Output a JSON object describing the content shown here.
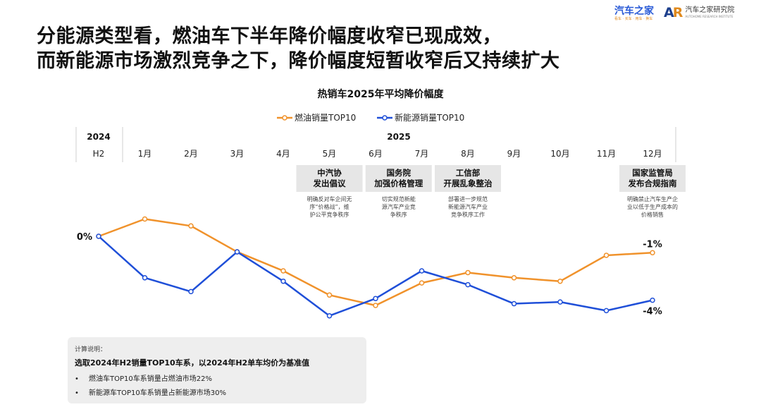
{
  "headline": {
    "line1": "分能源类型看，燃油车下半年降价幅度收窄已现成效，",
    "line2": "而新能源市场激烈竞争之下，降价幅度短暂收窄后又持续扩大"
  },
  "logos": {
    "autohome": {
      "name": "汽车之家",
      "tagline": "看车 · 买车 · 用车 · 换车"
    },
    "institute": {
      "mark": "AR",
      "name": "汽车之家研究院",
      "en": "AUTOHOME RESEARCH INSTITUTE"
    }
  },
  "colors": {
    "fuel": "#f0922b",
    "nev": "#1f4fd8",
    "callout_bg": "#e6e6e6",
    "grid": "#cccccc"
  },
  "chart_data": {
    "type": "line",
    "title": "热销车2025年平均降价幅度",
    "header_groups": [
      {
        "label": "2024",
        "span": [
          "H2"
        ]
      },
      {
        "label": "2025",
        "span": [
          "1月",
          "2月",
          "3月",
          "4月",
          "5月",
          "6月",
          "7月",
          "8月",
          "9月",
          "10月",
          "11月",
          "12月"
        ]
      }
    ],
    "categories": [
      "H2",
      "1月",
      "2月",
      "3月",
      "4月",
      "5月",
      "6月",
      "7月",
      "8月",
      "9月",
      "10月",
      "11月",
      "12月"
    ],
    "series": [
      {
        "name": "燃油销量TOP10",
        "color": "#f0922b",
        "values": [
          0,
          1.0,
          0.6,
          -0.9,
          -2.0,
          -3.4,
          -4.0,
          -2.7,
          -2.1,
          -2.4,
          -2.6,
          -1.1,
          -0.95
        ]
      },
      {
        "name": "新能源销量TOP10",
        "color": "#1f4fd8",
        "values": [
          0,
          -2.4,
          -3.2,
          -0.9,
          -2.6,
          -4.6,
          -3.6,
          -2.0,
          -2.8,
          -3.9,
          -3.8,
          -4.3,
          -3.7
        ]
      }
    ],
    "y_labels": [
      {
        "text": "0%",
        "value": 0
      },
      {
        "text": "-1%",
        "value": -0.95
      },
      {
        "text": "-4%",
        "value": -3.7
      }
    ],
    "legend_position": "top-center",
    "annotations": [
      {
        "month_index": 5,
        "title": [
          "中汽协",
          "发出倡议"
        ],
        "desc": [
          "明确反对车企间无",
          "序“价格战”，维",
          "护公平竞争秩序"
        ]
      },
      {
        "month_index": 6.5,
        "title": [
          "国务院",
          "加强价格管理"
        ],
        "desc": [
          "切实规范新能",
          "源汽车产业竞",
          "争秩序"
        ]
      },
      {
        "month_index": 8,
        "title": [
          "工信部",
          "开展乱象整治"
        ],
        "desc": [
          "部署进一步规范",
          "新能源汽车产业",
          "竞争秩序工作"
        ]
      },
      {
        "month_index": 12,
        "title": [
          "国家监管局",
          "发布合规指南"
        ],
        "desc": [
          "明确禁止汽车生产企",
          "业以低于生产成本的",
          "价格销售"
        ]
      }
    ]
  },
  "note": {
    "label": "计算说明：",
    "main": "选取2024年H2销量TOP10车系，以2024年H2单车均价为基准值",
    "bullet_symbol": "•",
    "bullets": [
      "燃油车TOP10车系销量占燃油市场22%",
      "新能源车TOP10车系销量占新能源市场30%"
    ]
  }
}
